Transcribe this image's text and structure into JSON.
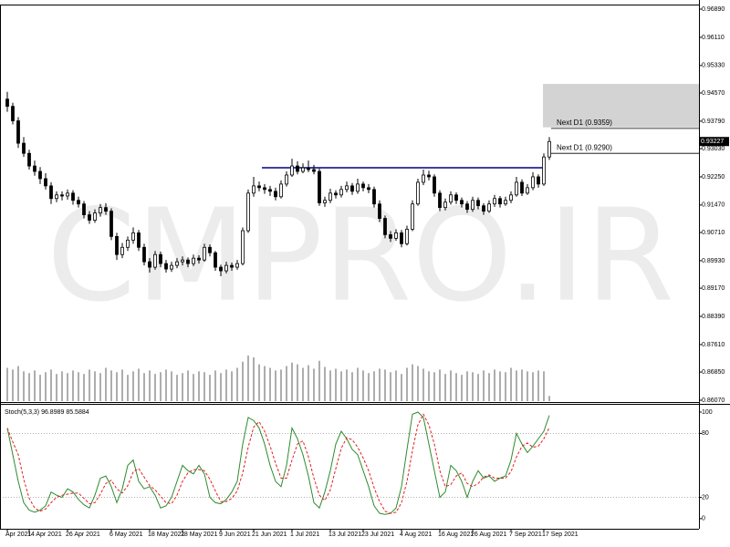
{
  "chart_data": [
    {
      "type": "candlestick",
      "watermark": "CMPRO.IR",
      "categories": [
        "Apr 2021",
        null,
        null,
        null,
        "14 Apr 2021",
        null,
        null,
        null,
        null,
        null,
        null,
        "26 Apr 2021",
        null,
        null,
        null,
        null,
        null,
        null,
        null,
        "6 May 2021",
        null,
        null,
        null,
        null,
        null,
        null,
        "18 May 2021",
        null,
        null,
        null,
        null,
        null,
        "28 May 2021",
        null,
        null,
        null,
        null,
        null,
        null,
        "9 Jun 2021",
        null,
        null,
        null,
        null,
        null,
        "21 Jun 2021",
        null,
        null,
        null,
        null,
        null,
        null,
        "1 Jul 2021",
        null,
        null,
        null,
        null,
        null,
        null,
        "13 Jul 2021",
        null,
        null,
        null,
        null,
        null,
        "23 Jul 2021",
        null,
        null,
        null,
        null,
        null,
        null,
        "4 Aug 2021",
        null,
        null,
        null,
        null,
        null,
        null,
        "16 Aug 2021",
        null,
        null,
        null,
        null,
        null,
        "26 Aug 2021",
        null,
        null,
        null,
        null,
        null,
        null,
        "7 Sep 2021",
        null,
        null,
        null,
        null,
        null,
        "17 Sep 2021",
        null
      ],
      "candles": [
        [
          0.944,
          0.946,
          0.9405,
          0.942
        ],
        [
          0.942,
          0.943,
          0.937,
          0.938
        ],
        [
          0.938,
          0.939,
          0.9305,
          0.9318
        ],
        [
          0.9318,
          0.9335,
          0.928,
          0.929
        ],
        [
          0.929,
          0.93,
          0.9245,
          0.9255
        ],
        [
          0.9255,
          0.927,
          0.9228,
          0.924
        ],
        [
          0.924,
          0.9252,
          0.9205,
          0.922
        ],
        [
          0.922,
          0.9235,
          0.919,
          0.92
        ],
        [
          0.92,
          0.921,
          0.915,
          0.9165
        ],
        [
          0.9165,
          0.9185,
          0.9155,
          0.9175
        ],
        [
          0.9175,
          0.9185,
          0.916,
          0.9172
        ],
        [
          0.9172,
          0.919,
          0.9162,
          0.918
        ],
        [
          0.918,
          0.9188,
          0.9148,
          0.916
        ],
        [
          0.916,
          0.917,
          0.914,
          0.915
        ],
        [
          0.915,
          0.9158,
          0.911,
          0.912
        ],
        [
          0.912,
          0.913,
          0.9095,
          0.9105
        ],
        [
          0.9105,
          0.9135,
          0.9098,
          0.9125
        ],
        [
          0.9125,
          0.915,
          0.9115,
          0.914
        ],
        [
          0.914,
          0.9152,
          0.912,
          0.913
        ],
        [
          0.913,
          0.9138,
          0.905,
          0.906
        ],
        [
          0.906,
          0.907,
          0.8995,
          0.901
        ],
        [
          0.901,
          0.9042,
          0.9,
          0.903
        ],
        [
          0.903,
          0.906,
          0.902,
          0.905
        ],
        [
          0.905,
          0.9085,
          0.904,
          0.907
        ],
        [
          0.907,
          0.9078,
          0.902,
          0.903
        ],
        [
          0.903,
          0.904,
          0.898,
          0.899
        ],
        [
          0.899,
          0.9,
          0.896,
          0.8975
        ],
        [
          0.8975,
          0.902,
          0.8968,
          0.901
        ],
        [
          0.901,
          0.9018,
          0.8975,
          0.8985
        ],
        [
          0.8985,
          0.8995,
          0.896,
          0.897
        ],
        [
          0.897,
          0.899,
          0.8962,
          0.898
        ],
        [
          0.898,
          0.9,
          0.8972,
          0.899
        ],
        [
          0.899,
          0.9005,
          0.898,
          0.8995
        ],
        [
          0.8995,
          0.9002,
          0.8975,
          0.8985
        ],
        [
          0.8985,
          0.901,
          0.8978,
          0.9
        ],
        [
          0.9,
          0.9008,
          0.8985,
          0.8995
        ],
        [
          0.8995,
          0.904,
          0.899,
          0.903
        ],
        [
          0.903,
          0.9038,
          0.9005,
          0.9015
        ],
        [
          0.9015,
          0.902,
          0.8965,
          0.8975
        ],
        [
          0.8975,
          0.8982,
          0.895,
          0.8965
        ],
        [
          0.8965,
          0.899,
          0.8958,
          0.898
        ],
        [
          0.898,
          0.8988,
          0.8965,
          0.8975
        ],
        [
          0.8975,
          0.8995,
          0.8968,
          0.8985
        ],
        [
          0.8985,
          0.9085,
          0.898,
          0.9076
        ],
        [
          0.9076,
          0.919,
          0.907,
          0.918
        ],
        [
          0.918,
          0.9225,
          0.917,
          0.92
        ],
        [
          0.92,
          0.9212,
          0.9185,
          0.9195
        ],
        [
          0.9195,
          0.9205,
          0.9178,
          0.919
        ],
        [
          0.919,
          0.92,
          0.9172,
          0.9185
        ],
        [
          0.9185,
          0.9195,
          0.916,
          0.917
        ],
        [
          0.917,
          0.9215,
          0.9165,
          0.9205
        ],
        [
          0.9205,
          0.924,
          0.9198,
          0.923
        ],
        [
          0.923,
          0.9275,
          0.9225,
          0.9255
        ],
        [
          0.9255,
          0.9268,
          0.9232,
          0.924
        ],
        [
          0.924,
          0.9262,
          0.9235,
          0.925
        ],
        [
          0.925,
          0.927,
          0.9238,
          0.9245
        ],
        [
          0.9245,
          0.9258,
          0.9232,
          0.924
        ],
        [
          0.924,
          0.9248,
          0.9145,
          0.9153
        ],
        [
          0.9153,
          0.917,
          0.9142,
          0.916
        ],
        [
          0.916,
          0.9192,
          0.9152,
          0.918
        ],
        [
          0.918,
          0.9188,
          0.9165,
          0.9175
        ],
        [
          0.9175,
          0.92,
          0.9168,
          0.919
        ],
        [
          0.919,
          0.9212,
          0.9182,
          0.92
        ],
        [
          0.92,
          0.9208,
          0.9175,
          0.9185
        ],
        [
          0.9185,
          0.922,
          0.9178,
          0.9205
        ],
        [
          0.9205,
          0.9212,
          0.9185,
          0.9195
        ],
        [
          0.9195,
          0.9205,
          0.918,
          0.919
        ],
        [
          0.919,
          0.9198,
          0.914,
          0.915
        ],
        [
          0.915,
          0.916,
          0.91,
          0.911
        ],
        [
          0.911,
          0.9118,
          0.9055,
          0.9065
        ],
        [
          0.9065,
          0.9075,
          0.9045,
          0.9055
        ],
        [
          0.9055,
          0.908,
          0.9048,
          0.907
        ],
        [
          0.907,
          0.9078,
          0.903,
          0.904
        ],
        [
          0.904,
          0.909,
          0.9035,
          0.908
        ],
        [
          0.908,
          0.916,
          0.9075,
          0.915
        ],
        [
          0.915,
          0.922,
          0.9145,
          0.921
        ],
        [
          0.921,
          0.9245,
          0.9202,
          0.923
        ],
        [
          0.923,
          0.9242,
          0.9215,
          0.9225
        ],
        [
          0.9225,
          0.9232,
          0.917,
          0.918
        ],
        [
          0.918,
          0.9188,
          0.913,
          0.914
        ],
        [
          0.914,
          0.9165,
          0.9132,
          0.9155
        ],
        [
          0.9155,
          0.9185,
          0.9148,
          0.9175
        ],
        [
          0.9175,
          0.9182,
          0.915,
          0.916
        ],
        [
          0.916,
          0.9168,
          0.914,
          0.915
        ],
        [
          0.915,
          0.9158,
          0.9125,
          0.9135
        ],
        [
          0.9135,
          0.917,
          0.9128,
          0.916
        ],
        [
          0.916,
          0.9168,
          0.9135,
          0.9145
        ],
        [
          0.9145,
          0.9152,
          0.912,
          0.913
        ],
        [
          0.913,
          0.916,
          0.9125,
          0.915
        ],
        [
          0.915,
          0.9175,
          0.9142,
          0.9165
        ],
        [
          0.9165,
          0.9172,
          0.914,
          0.915
        ],
        [
          0.915,
          0.917,
          0.9145,
          0.916
        ],
        [
          0.916,
          0.9185,
          0.9152,
          0.9175
        ],
        [
          0.9175,
          0.9225,
          0.917,
          0.921
        ],
        [
          0.921,
          0.9218,
          0.9172,
          0.918
        ],
        [
          0.918,
          0.9205,
          0.9175,
          0.9195
        ],
        [
          0.9195,
          0.9238,
          0.9188,
          0.9225
        ],
        [
          0.9225,
          0.9232,
          0.9195,
          0.9205
        ],
        [
          0.9205,
          0.929,
          0.92,
          0.928
        ],
        [
          0.928,
          0.9335,
          0.9272,
          0.93227
        ]
      ],
      "up_color": "#ffffff",
      "down_color": "#000000",
      "volumes": [
        38,
        36,
        40,
        34,
        32,
        35,
        30,
        33,
        36,
        31,
        34,
        32,
        35,
        33,
        31,
        36,
        34,
        32,
        38,
        35,
        33,
        36,
        30,
        34,
        37,
        32,
        35,
        31,
        33,
        36,
        34,
        30,
        32,
        35,
        31,
        34,
        33,
        30,
        35,
        32,
        36,
        34,
        38,
        45,
        52,
        50,
        42,
        40,
        38,
        35,
        36,
        40,
        44,
        42,
        38,
        41,
        37,
        46,
        39,
        35,
        37,
        34,
        36,
        33,
        38,
        35,
        32,
        34,
        37,
        36,
        33,
        35,
        31,
        38,
        42,
        40,
        37,
        34,
        33,
        36,
        31,
        35,
        32,
        30,
        34,
        33,
        31,
        35,
        32,
        36,
        34,
        33,
        38,
        35,
        36,
        34,
        33,
        35,
        34,
        6
      ],
      "volume_color": "#8a8a8a",
      "ylim": [
        0.86045,
        0.97016
      ],
      "yticks": [
        {
          "value": 0.9689,
          "label": "0.96890"
        },
        {
          "value": 0.9611,
          "label": "0.96110"
        },
        {
          "value": 0.9533,
          "label": "0.95330"
        },
        {
          "value": 0.9457,
          "label": "0.94570"
        },
        {
          "value": 0.9379,
          "label": "0.93790"
        },
        {
          "value": 0.9303,
          "label": "0.93030"
        },
        {
          "value": 0.9225,
          "label": "0.92250"
        },
        {
          "value": 0.9147,
          "label": "0.91470"
        },
        {
          "value": 0.9071,
          "label": "0.90710"
        },
        {
          "value": 0.8993,
          "label": "0.89930"
        },
        {
          "value": 0.8917,
          "label": "0.89170"
        },
        {
          "value": 0.8839,
          "label": "0.88390"
        },
        {
          "value": 0.8761,
          "label": "0.87610"
        },
        {
          "value": 0.8685,
          "label": "0.86850"
        },
        {
          "value": 0.8607,
          "label": "0.86070"
        }
      ],
      "zone": {
        "range": [
          0.9362,
          0.9482
        ],
        "color": "#d3d3d3"
      },
      "trendline": {
        "value": 0.925,
        "color": "#000080"
      },
      "levels": [
        {
          "value": 0.9359,
          "label": "Next D1 (0.9359)"
        },
        {
          "value": 0.929,
          "label": "Next D1 (0.9290)"
        }
      ],
      "current_price": {
        "value": 0.93227,
        "label": "0.93227"
      }
    },
    {
      "type": "line",
      "title": "Stoch(5,3,3) 96.8989 85.5884",
      "ylim": [
        -9.5,
        106
      ],
      "yticks": [
        100,
        80,
        20,
        0
      ],
      "levels": [
        80,
        20
      ],
      "series": [
        {
          "color": "#2e8b2e",
          "line_style": "solid",
          "values": [
            85,
            60,
            35,
            15,
            8,
            6,
            8,
            12,
            25,
            22,
            20,
            28,
            25,
            18,
            13,
            10,
            22,
            38,
            40,
            30,
            15,
            28,
            50,
            55,
            35,
            28,
            30,
            22,
            10,
            12,
            20,
            35,
            50,
            45,
            42,
            50,
            42,
            20,
            15,
            14,
            18,
            25,
            35,
            70,
            95,
            92,
            85,
            70,
            50,
            35,
            30,
            50,
            85,
            75,
            60,
            40,
            15,
            10,
            25,
            45,
            70,
            82,
            75,
            65,
            60,
            45,
            30,
            12,
            5,
            4,
            5,
            10,
            30,
            65,
            98,
            100,
            95,
            70,
            45,
            20,
            25,
            50,
            45,
            35,
            20,
            35,
            45,
            38,
            40,
            35,
            38,
            40,
            55,
            80,
            70,
            62,
            68,
            75,
            82,
            96.8989
          ]
        },
        {
          "color": "#e02020",
          "line_style": "dashed",
          "values": [
            85,
            72,
            60,
            37,
            19,
            10,
            7,
            9,
            15,
            20,
            22,
            23,
            24,
            24,
            19,
            14,
            15,
            23,
            33,
            36,
            28,
            24,
            31,
            44,
            47,
            39,
            31,
            27,
            21,
            15,
            14,
            22,
            35,
            43,
            46,
            46,
            45,
            37,
            26,
            16,
            16,
            19,
            26,
            43,
            67,
            86,
            91,
            82,
            68,
            52,
            38,
            38,
            55,
            70,
            73,
            58,
            38,
            22,
            17,
            27,
            47,
            66,
            76,
            74,
            67,
            57,
            45,
            29,
            16,
            7,
            5,
            6,
            15,
            35,
            64,
            88,
            98,
            88,
            70,
            45,
            30,
            32,
            40,
            43,
            33,
            30,
            33,
            39,
            41,
            38,
            38,
            38,
            44,
            58,
            68,
            71,
            67,
            68,
            75,
            85.5884
          ]
        }
      ]
    }
  ]
}
